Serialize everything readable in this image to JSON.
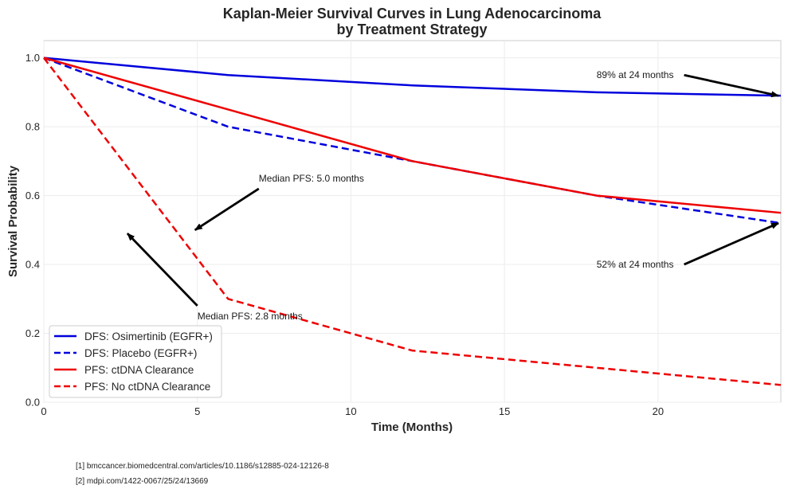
{
  "chart_data": {
    "type": "line",
    "title_line1": "Kaplan-Meier Survival Curves in Lung Adenocarcinoma",
    "title_line2": "by Treatment Strategy",
    "xlabel": "Time (Months)",
    "ylabel": "Survival Probability",
    "xlim": [
      0,
      24
    ],
    "ylim": [
      0,
      1.05
    ],
    "xticks": [
      0,
      5,
      10,
      15,
      20
    ],
    "xtick_labels": [
      "0",
      "5",
      "10",
      "15",
      "20"
    ],
    "yticks": [
      0.0,
      0.2,
      0.4,
      0.6,
      0.8,
      1.0
    ],
    "ytick_labels": [
      "0.0",
      "0.2",
      "0.4",
      "0.6",
      "0.8",
      "1.0"
    ],
    "grid": true,
    "legend_position": "lower-left",
    "series": [
      {
        "name": "DFS: Osimertinib (EGFR+)",
        "color": "#0000dd",
        "dashed": false,
        "x": [
          0,
          6,
          12,
          18,
          24
        ],
        "y": [
          1.0,
          0.95,
          0.92,
          0.9,
          0.89
        ]
      },
      {
        "name": "DFS: Placebo (EGFR+)",
        "color": "#0000dd",
        "dashed": true,
        "x": [
          0,
          6,
          12,
          18,
          24
        ],
        "y": [
          1.0,
          0.8,
          0.7,
          0.6,
          0.52
        ]
      },
      {
        "name": "PFS: ctDNA Clearance",
        "color": "#ee0000",
        "dashed": false,
        "x": [
          0,
          6,
          12,
          18,
          24
        ],
        "y": [
          1.0,
          0.85,
          0.7,
          0.6,
          0.55
        ]
      },
      {
        "name": "PFS: No ctDNA Clearance",
        "color": "#ee0000",
        "dashed": true,
        "x": [
          0,
          6,
          12,
          18,
          24
        ],
        "y": [
          1.0,
          0.3,
          0.15,
          0.1,
          0.05
        ]
      }
    ],
    "annotations": [
      {
        "text": "89% at 24 months",
        "text_x": 18,
        "text_y": 0.95,
        "text_x_end": 20.85,
        "arrow_to_x": 24,
        "arrow_to_y": 0.89
      },
      {
        "text": "52% at 24 months",
        "text_x": 18,
        "text_y": 0.4,
        "text_x_end": 20.85,
        "arrow_to_x": 24,
        "arrow_to_y": 0.52
      },
      {
        "text": "Median PFS: 5.0 months",
        "text_x": 7,
        "text_y": 0.65,
        "text_x_end": 7,
        "arrow_to_x": 5,
        "arrow_to_y": 0.5
      },
      {
        "text": "Median PFS: 2.8 months",
        "text_x": 5,
        "text_y": 0.25,
        "text_x_end": 5,
        "arrow_to_x": 2.8,
        "arrow_to_y": 0.49
      }
    ]
  },
  "references": [
    "[1] bmccancer.biomedcentral.com/articles/10.1186/s12885-024-12126-8",
    "[2] mdpi.com/1422-0067/25/24/13669"
  ]
}
